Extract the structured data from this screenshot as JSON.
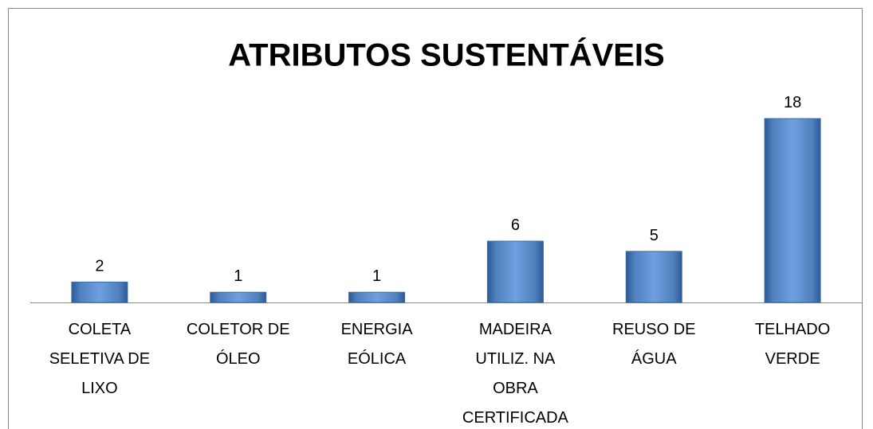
{
  "chart_data": {
    "type": "bar",
    "title": "ATRIBUTOS SUSTENTÁVEIS",
    "categories": [
      "COLETA SELETIVA DE LIXO",
      "COLETOR DE ÓLEO",
      "ENERGIA EÓLICA",
      "MADEIRA UTILIZ. NA OBRA CERTIFICADA",
      "REUSO DE ÁGUA",
      "TELHADO VERDE"
    ],
    "values": [
      2,
      1,
      1,
      6,
      5,
      18
    ],
    "color": "#4f81bd"
  }
}
